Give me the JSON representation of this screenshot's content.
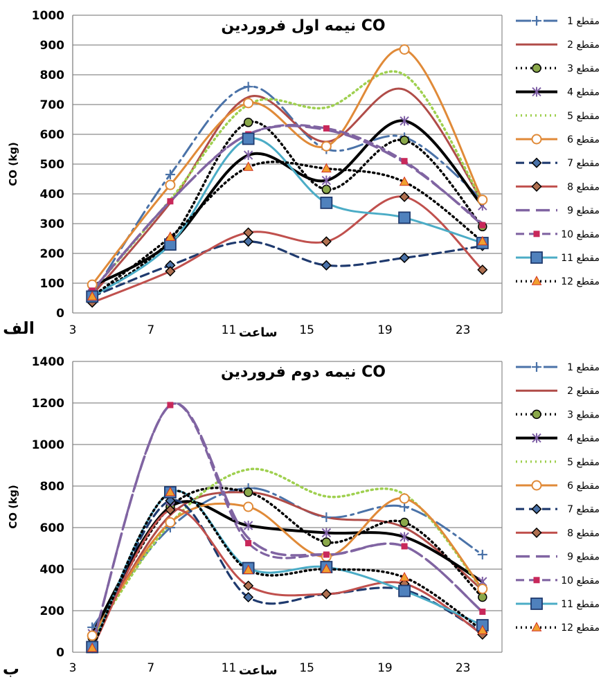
{
  "chart_data": [
    {
      "type": "line",
      "title": "نیمه اول فروردین CO",
      "panel_label": "الف",
      "xlabel": "ساعت",
      "ylabel": "CO (kg)",
      "xlim": [
        3,
        25
      ],
      "ylim": [
        0,
        1000
      ],
      "xticks": [
        3,
        7,
        11,
        15,
        19,
        23
      ],
      "yticks": [
        0,
        100,
        200,
        300,
        400,
        500,
        600,
        700,
        800,
        900,
        1000
      ],
      "grid": "horizontal",
      "legend_position": "right",
      "x": [
        4,
        8,
        12,
        16,
        20,
        24
      ],
      "series": [
        {
          "name": "مقطع 1",
          "color": "#4a72a8",
          "dash": "long-dash-dot",
          "marker": "plus",
          "values": [
            60,
            465,
            760,
            550,
            590,
            380
          ]
        },
        {
          "name": "مقطع 2",
          "color": "#b04c48",
          "dash": "solid",
          "marker": "none",
          "values": [
            60,
            370,
            725,
            575,
            750,
            375
          ]
        },
        {
          "name": "مقطع 3",
          "color": "#000000",
          "dash": "dotted",
          "marker": "circle",
          "markerFill": "#8aa84a",
          "values": [
            55,
            245,
            640,
            415,
            580,
            290
          ]
        },
        {
          "name": "مقطع 4",
          "color": "#000000",
          "dash": "solid-thick",
          "marker": "star",
          "markerColor": "#7e5fa5",
          "values": [
            90,
            235,
            530,
            445,
            645,
            360
          ]
        },
        {
          "name": "مقطع 5",
          "color": "#9fd04f",
          "dash": "dotted",
          "marker": "none",
          "values": [
            75,
            380,
            700,
            690,
            800,
            375
          ]
        },
        {
          "name": "مقطع 6",
          "color": "#e08a38",
          "dash": "solid",
          "marker": "circle-open",
          "values": [
            95,
            430,
            705,
            560,
            885,
            380
          ]
        },
        {
          "name": "مقطع 7",
          "color": "#1f3a6e",
          "dash": "dashed",
          "marker": "diamond",
          "markerFill": "#4a72a8",
          "values": [
            55,
            160,
            240,
            160,
            185,
            225
          ]
        },
        {
          "name": "مقطع 8",
          "color": "#c0504d",
          "dash": "solid",
          "marker": "diamond",
          "markerFill": "#b07050",
          "values": [
            35,
            140,
            270,
            240,
            390,
            145
          ]
        },
        {
          "name": "مقطع 9",
          "color": "#8064a2",
          "dash": "long-dash",
          "marker": "none",
          "values": [
            75,
            375,
            600,
            615,
            505,
            300
          ]
        },
        {
          "name": "مقطع 10",
          "color": "#8064a2",
          "dash": "dashed",
          "marker": "square-small",
          "markerFill": "#c8285a",
          "values": [
            75,
            375,
            600,
            620,
            510,
            295
          ]
        },
        {
          "name": "مقطع 11",
          "color": "#4bacc6",
          "dash": "solid",
          "marker": "square",
          "markerFill": "#4f81bd",
          "values": [
            55,
            230,
            585,
            370,
            320,
            235
          ]
        },
        {
          "name": "مقطع 12",
          "color": "#000000",
          "dash": "dotted",
          "marker": "triangle",
          "markerFill": "#f0a030",
          "values": [
            55,
            255,
            490,
            485,
            440,
            240
          ]
        }
      ]
    },
    {
      "type": "line",
      "title": "نیمه دوم فروردین CO",
      "panel_label": "ب",
      "xlabel": "ساعت",
      "ylabel": "CO (kg)",
      "xlim": [
        3,
        25
      ],
      "ylim": [
        0,
        1400
      ],
      "xticks": [
        3,
        7,
        11,
        15,
        19,
        23
      ],
      "yticks": [
        0,
        200,
        400,
        600,
        800,
        1000,
        1200,
        1400
      ],
      "grid": "horizontal",
      "legend_position": "right",
      "x": [
        4,
        8,
        12,
        16,
        20,
        24
      ],
      "series": [
        {
          "name": "مقطع 1",
          "color": "#4a72a8",
          "dash": "long-dash-dot",
          "marker": "plus",
          "values": [
            120,
            600,
            790,
            650,
            700,
            470
          ]
        },
        {
          "name": "مقطع 2",
          "color": "#b04c48",
          "dash": "solid",
          "marker": "none",
          "values": [
            60,
            660,
            770,
            650,
            600,
            300
          ]
        },
        {
          "name": "مقطع 3",
          "color": "#000000",
          "dash": "dotted",
          "marker": "circle",
          "markerFill": "#8aa84a",
          "values": [
            70,
            700,
            770,
            530,
            625,
            265
          ]
        },
        {
          "name": "مقطع 4",
          "color": "#000000",
          "dash": "solid-thick",
          "marker": "star",
          "markerColor": "#7e5fa5",
          "values": [
            90,
            700,
            610,
            575,
            555,
            340
          ]
        },
        {
          "name": "مقطع 5",
          "color": "#9fd04f",
          "dash": "dotted",
          "marker": "none",
          "values": [
            75,
            620,
            880,
            750,
            760,
            300
          ]
        },
        {
          "name": "مقطع 6",
          "color": "#e08a38",
          "dash": "solid",
          "marker": "circle-open",
          "values": [
            80,
            625,
            700,
            460,
            740,
            305
          ]
        },
        {
          "name": "مقطع 7",
          "color": "#1f3a6e",
          "dash": "dashed",
          "marker": "diamond",
          "markerFill": "#4a72a8",
          "values": [
            25,
            730,
            265,
            280,
            300,
            95
          ]
        },
        {
          "name": "مقطع 8",
          "color": "#c0504d",
          "dash": "solid",
          "marker": "diamond",
          "markerFill": "#b07050",
          "values": [
            20,
            685,
            320,
            280,
            330,
            85
          ]
        },
        {
          "name": "مقطع 9",
          "color": "#8064a2",
          "dash": "long-dash",
          "marker": "none",
          "values": [
            40,
            1190,
            550,
            470,
            510,
            195
          ]
        },
        {
          "name": "مقطع 10",
          "color": "#8064a2",
          "dash": "dashed",
          "marker": "square-small",
          "markerFill": "#c8285a",
          "values": [
            40,
            1190,
            525,
            470,
            510,
            195
          ]
        },
        {
          "name": "مقطع 11",
          "color": "#4bacc6",
          "dash": "solid",
          "marker": "square",
          "markerFill": "#4f81bd",
          "values": [
            25,
            770,
            405,
            410,
            295,
            130
          ]
        },
        {
          "name": "مقطع 12",
          "color": "#000000",
          "dash": "dotted",
          "marker": "triangle",
          "markerFill": "#f0a030",
          "values": [
            20,
            770,
            395,
            400,
            360,
            105
          ]
        }
      ]
    }
  ]
}
